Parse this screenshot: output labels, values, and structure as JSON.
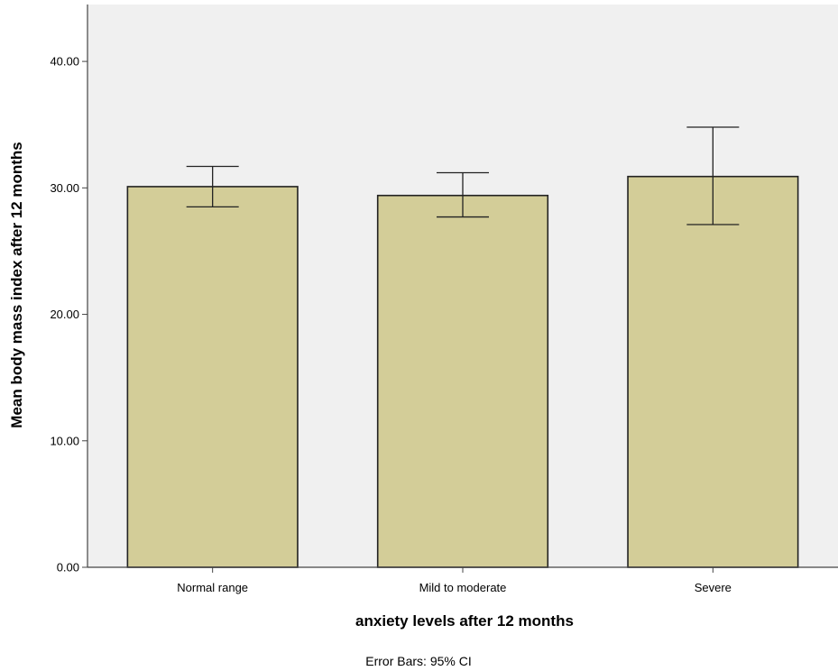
{
  "chart_data": {
    "type": "bar",
    "categories": [
      "Normal range",
      "Mild to moderate",
      "Severe"
    ],
    "values": [
      30.1,
      29.4,
      30.9
    ],
    "error_bars": [
      {
        "low": 28.5,
        "high": 31.7
      },
      {
        "low": 27.7,
        "high": 31.2
      },
      {
        "low": 27.1,
        "high": 34.8
      }
    ],
    "xlabel": "anxiety levels after 12 months",
    "ylabel": "Mean body mass index after 12 months",
    "ylim": [
      0,
      44.5
    ],
    "yticks": [
      "0.00",
      "10.00",
      "20.00",
      "30.00",
      "40.00"
    ],
    "grid": false,
    "footnote": "Error Bars: 95% CI"
  },
  "colors": {
    "plot_background": "#f0f0f0",
    "bar_fill": "#d3cd98",
    "bar_stroke": "#222222",
    "axis": "#444444"
  }
}
